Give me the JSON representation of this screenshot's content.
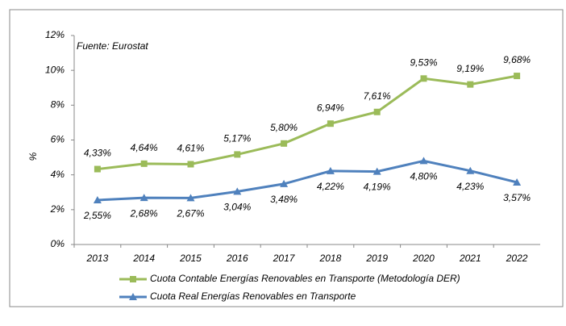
{
  "chart_data": {
    "type": "line",
    "annotation": "Fuente: Eurostat",
    "y_label": "%",
    "categories": [
      "2013",
      "2014",
      "2015",
      "2016",
      "2017",
      "2018",
      "2019",
      "2020",
      "2021",
      "2022"
    ],
    "series": [
      {
        "name": "Cuota Contable Energías Renovables en Transporte (Metodología DER)",
        "color": "#9bbb59",
        "marker": "square",
        "values": [
          4.33,
          4.64,
          4.61,
          5.17,
          5.8,
          6.94,
          7.61,
          9.53,
          9.19,
          9.68
        ],
        "value_labels": [
          "4,33%",
          "4,64%",
          "4,61%",
          "5,17%",
          "5,80%",
          "6,94%",
          "7,61%",
          "9,53%",
          "9,19%",
          "9,68%"
        ]
      },
      {
        "name": "Cuota Real Energías Renovables en Transporte",
        "color": "#4f81bd",
        "marker": "triangle",
        "values": [
          2.55,
          2.68,
          2.67,
          3.04,
          3.48,
          4.22,
          4.19,
          4.8,
          4.23,
          3.57
        ],
        "value_labels": [
          "2,55%",
          "2,68%",
          "2,67%",
          "3,04%",
          "3,48%",
          "4,22%",
          "4,19%",
          "4,80%",
          "4,23%",
          "3,57%"
        ]
      }
    ],
    "ylim": [
      0,
      12
    ],
    "yticks": [
      {
        "value": 0,
        "label": "0%"
      },
      {
        "value": 2,
        "label": "2%"
      },
      {
        "value": 4,
        "label": "4%"
      },
      {
        "value": 6,
        "label": "6%"
      },
      {
        "value": 8,
        "label": "8%"
      },
      {
        "value": 10,
        "label": "10%"
      },
      {
        "value": 12,
        "label": "12%"
      }
    ],
    "grid": false
  }
}
